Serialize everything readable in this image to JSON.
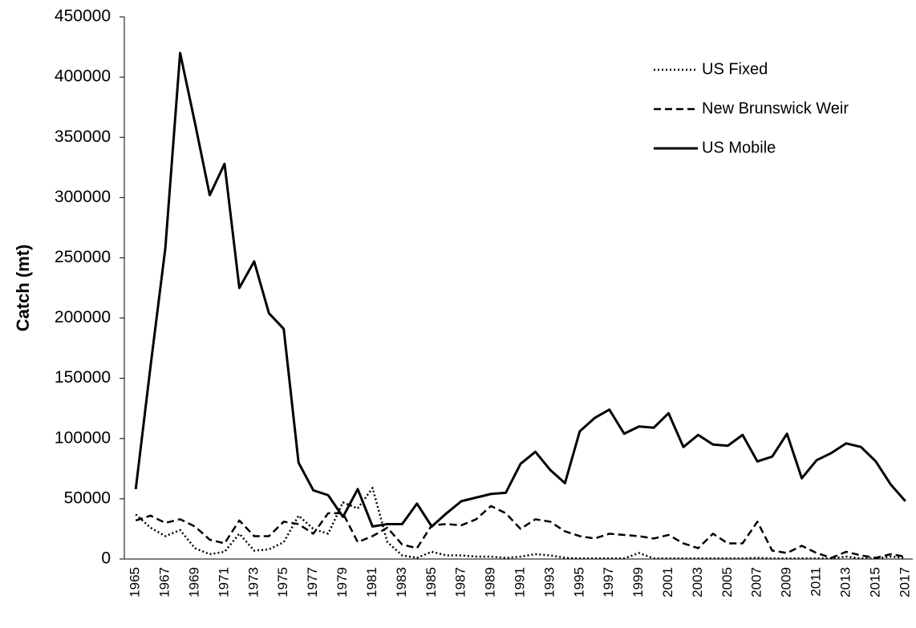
{
  "chart_data": {
    "type": "line",
    "y_label": "Catch (mt)",
    "categories": [
      "1965",
      null,
      "1967",
      null,
      "1969",
      null,
      "1971",
      null,
      "1973",
      null,
      "1975",
      null,
      "1977",
      null,
      "1979",
      null,
      "1981",
      null,
      "1983",
      null,
      "1985",
      null,
      "1987",
      null,
      "1989",
      null,
      "1991",
      null,
      "1993",
      null,
      "1995",
      null,
      "1997",
      null,
      "1999",
      null,
      "2001",
      null,
      "2003",
      null,
      "2005",
      null,
      "2007",
      null,
      "2009",
      null,
      "2011",
      null,
      "2013",
      null,
      "2015",
      null,
      "2017"
    ],
    "series": [
      {
        "name": "US Fixed",
        "color": "#000000",
        "dash": "dotted",
        "values": [
          37000,
          26000,
          19000,
          24000,
          9000,
          4000,
          6000,
          21000,
          7000,
          8000,
          14000,
          36000,
          25000,
          21000,
          47000,
          42000,
          59000,
          14000,
          3000,
          1000,
          6000,
          3000,
          3000,
          2000,
          2000,
          1000,
          2000,
          4000,
          3000,
          1000,
          500,
          500,
          500,
          500,
          5000,
          500,
          500,
          500,
          500,
          500,
          500,
          500,
          1000,
          500,
          500,
          500,
          500,
          500,
          2000,
          500,
          500,
          2000,
          1000
        ]
      },
      {
        "name": "New Brunswick Weir",
        "color": "#000000",
        "dash": "dashed",
        "values": [
          32000,
          36000,
          30000,
          33000,
          27000,
          16000,
          13000,
          32000,
          19000,
          19000,
          31000,
          29000,
          21000,
          38000,
          38000,
          14000,
          19000,
          26000,
          12000,
          9000,
          28000,
          29000,
          28000,
          33000,
          44000,
          38000,
          25000,
          33000,
          31000,
          23000,
          19000,
          17000,
          21000,
          20000,
          19000,
          17000,
          20000,
          13000,
          9000,
          21000,
          13000,
          13000,
          31000,
          7000,
          5000,
          11000,
          5000,
          1000,
          6000,
          3000,
          1000,
          4000,
          2000
        ]
      },
      {
        "name": "US Mobile",
        "color": "#000000",
        "dash": "solid",
        "values": [
          58000,
          160000,
          258000,
          420000,
          362000,
          302000,
          328000,
          225000,
          247000,
          204000,
          191000,
          80000,
          57000,
          53000,
          35000,
          58000,
          27000,
          29000,
          29000,
          46000,
          27000,
          38000,
          48000,
          51000,
          54000,
          55000,
          79000,
          89000,
          74000,
          63000,
          106000,
          117000,
          124000,
          104000,
          110000,
          109000,
          121000,
          93000,
          103000,
          95000,
          94000,
          103000,
          81000,
          85000,
          104000,
          67000,
          82000,
          88000,
          96000,
          93000,
          81000,
          62000,
          48000
        ]
      }
    ],
    "ylim": [
      0,
      450000
    ],
    "yticks": [
      0,
      50000,
      100000,
      150000,
      200000,
      250000,
      300000,
      350000,
      400000,
      450000
    ],
    "legend": "top-right"
  }
}
